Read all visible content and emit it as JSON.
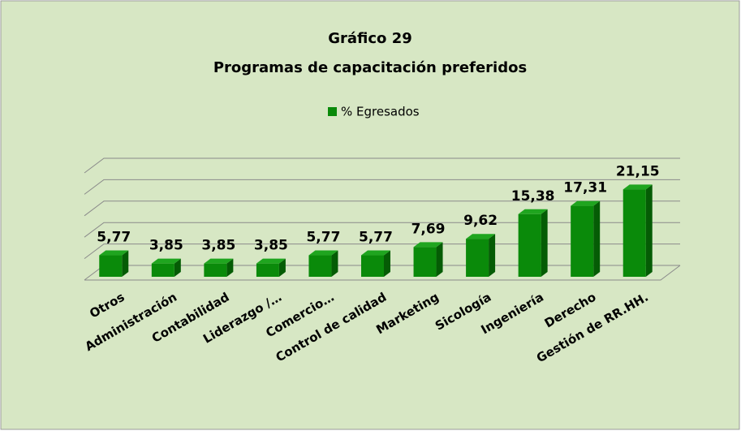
{
  "chart_data": {
    "type": "bar3d",
    "title": "Gráfico 29",
    "subtitle": "Programas de capacitación preferidos",
    "categories": [
      "Otros",
      "Administración",
      "Contabilidad",
      "Liderazgo /…",
      "Comercio…",
      "Control de calidad",
      "Marketing",
      "Sicología",
      "Ingeniería",
      "Derecho",
      "Gestión de RR.HH."
    ],
    "series": [
      {
        "name": "% Egresados",
        "color": "#0a8a0a",
        "values": [
          5.77,
          3.85,
          3.85,
          3.85,
          5.77,
          5.77,
          7.69,
          9.62,
          15.38,
          17.31,
          21.15
        ],
        "value_labels": [
          "5,77",
          "3,85",
          "3,85",
          "3,85",
          "5,77",
          "5,77",
          "7,69",
          "9,62",
          "15,38",
          "17,31",
          "21,15"
        ]
      }
    ],
    "ylim": [
      0,
      25
    ],
    "yticks": [
      0,
      5,
      10,
      15,
      20,
      25
    ],
    "grid": true,
    "legend": "top"
  }
}
